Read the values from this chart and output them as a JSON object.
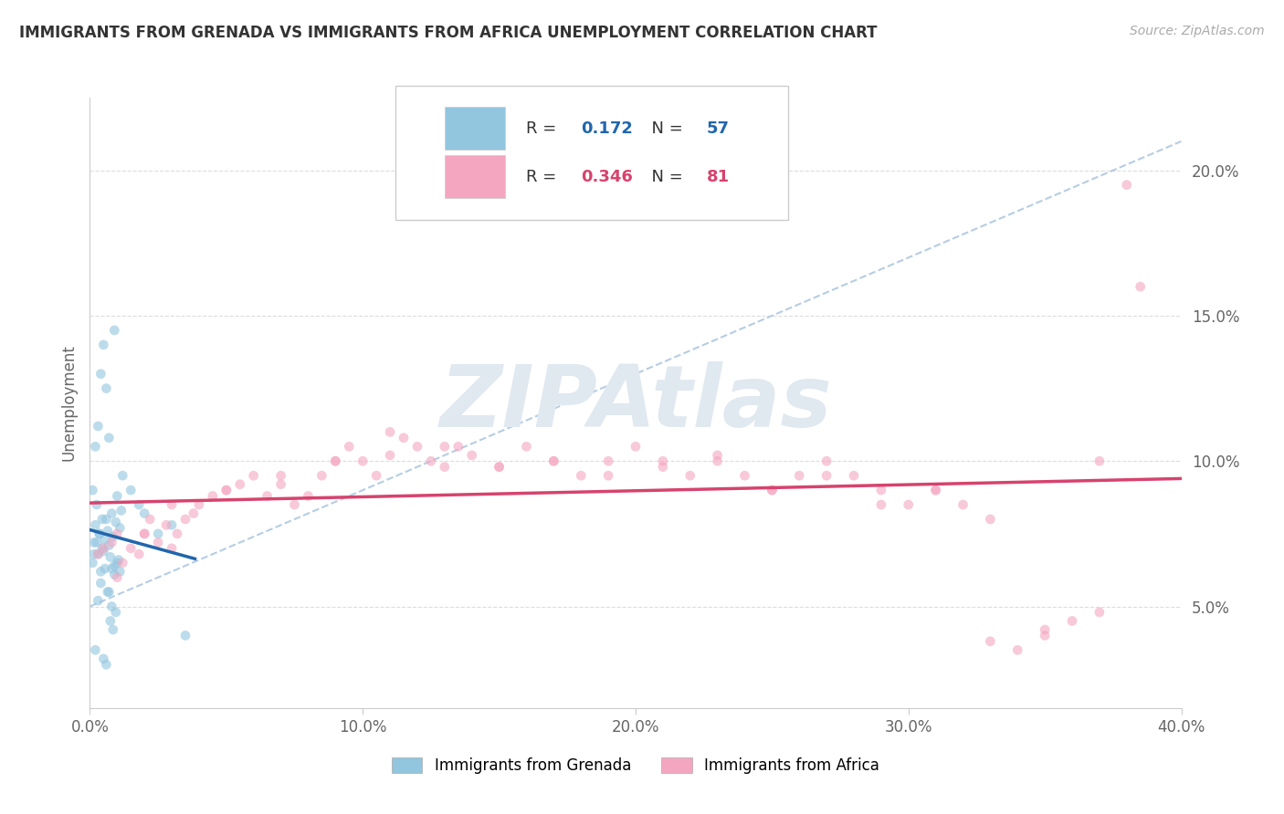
{
  "title": "IMMIGRANTS FROM GRENADA VS IMMIGRANTS FROM AFRICA UNEMPLOYMENT CORRELATION CHART",
  "source": "Source: ZipAtlas.com",
  "ylabel": "Unemployment",
  "x_tick_labels": [
    "0.0%",
    "10.0%",
    "20.0%",
    "30.0%",
    "40.0%"
  ],
  "x_tick_values": [
    0.0,
    10.0,
    20.0,
    30.0,
    40.0
  ],
  "y_tick_labels": [
    "5.0%",
    "10.0%",
    "15.0%",
    "20.0%"
  ],
  "y_tick_values": [
    5.0,
    10.0,
    15.0,
    20.0
  ],
  "xlim": [
    0.0,
    40.0
  ],
  "ylim": [
    1.5,
    22.5
  ],
  "grenada_R": 0.172,
  "grenada_N": 57,
  "africa_R": 0.346,
  "africa_N": 81,
  "grenada_color": "#92c5de",
  "africa_color": "#f4a6c0",
  "grenada_line_color": "#2166ac",
  "africa_line_color": "#d6436e",
  "dashed_line_color": "#aec8e0",
  "watermark": "ZIPAtlas",
  "bottom_legend_labels": [
    "Immigrants from Grenada",
    "Immigrants from Africa"
  ],
  "grenada_x": [
    0.1,
    0.15,
    0.2,
    0.25,
    0.3,
    0.35,
    0.4,
    0.45,
    0.5,
    0.55,
    0.6,
    0.65,
    0.7,
    0.75,
    0.8,
    0.85,
    0.9,
    0.95,
    1.0,
    1.05,
    1.1,
    1.15,
    1.2,
    0.1,
    0.2,
    0.3,
    0.4,
    0.5,
    0.6,
    0.7,
    0.8,
    0.9,
    1.0,
    1.1,
    0.15,
    0.25,
    0.35,
    0.45,
    0.55,
    0.65,
    0.75,
    0.85,
    0.95,
    1.5,
    1.8,
    2.0,
    2.5,
    3.0,
    3.5,
    0.2,
    0.3,
    0.4,
    0.5,
    0.6,
    0.7,
    0.8,
    0.9
  ],
  "grenada_y": [
    6.5,
    7.2,
    7.8,
    8.5,
    6.8,
    7.5,
    6.2,
    7.0,
    6.9,
    7.3,
    8.0,
    7.6,
    7.1,
    6.7,
    8.2,
    7.4,
    6.4,
    7.9,
    8.8,
    6.6,
    7.7,
    8.3,
    9.5,
    9.0,
    10.5,
    11.2,
    13.0,
    14.0,
    12.5,
    10.8,
    6.3,
    6.1,
    6.5,
    6.2,
    6.8,
    7.2,
    7.5,
    8.0,
    6.3,
    5.5,
    4.5,
    4.2,
    4.8,
    9.0,
    8.5,
    8.2,
    7.5,
    7.8,
    4.0,
    3.5,
    5.2,
    5.8,
    3.2,
    3.0,
    5.5,
    5.0,
    14.5
  ],
  "africa_x": [
    0.3,
    0.5,
    0.8,
    1.0,
    1.2,
    1.5,
    1.8,
    2.0,
    2.2,
    2.5,
    2.8,
    3.0,
    3.2,
    3.5,
    3.8,
    4.0,
    4.5,
    5.0,
    5.5,
    6.0,
    6.5,
    7.0,
    7.5,
    8.0,
    8.5,
    9.0,
    9.5,
    10.0,
    10.5,
    11.0,
    11.5,
    12.0,
    12.5,
    13.0,
    13.5,
    14.0,
    15.0,
    16.0,
    17.0,
    18.0,
    19.0,
    20.0,
    21.0,
    22.0,
    23.0,
    24.0,
    25.0,
    26.0,
    27.0,
    28.0,
    29.0,
    30.0,
    31.0,
    32.0,
    33.0,
    34.0,
    35.0,
    36.0,
    37.0,
    38.0,
    1.0,
    2.0,
    3.0,
    5.0,
    7.0,
    9.0,
    11.0,
    13.0,
    15.0,
    17.0,
    19.0,
    21.0,
    23.0,
    25.0,
    27.0,
    29.0,
    31.0,
    33.0,
    35.0,
    37.0,
    38.5
  ],
  "africa_y": [
    6.8,
    7.0,
    7.2,
    7.5,
    6.5,
    7.0,
    6.8,
    7.5,
    8.0,
    7.2,
    7.8,
    8.5,
    7.5,
    8.0,
    8.2,
    8.5,
    8.8,
    9.0,
    9.2,
    9.5,
    8.8,
    9.2,
    8.5,
    8.8,
    9.5,
    10.0,
    10.5,
    10.0,
    9.5,
    10.2,
    10.8,
    10.5,
    10.0,
    9.8,
    10.5,
    10.2,
    9.8,
    10.5,
    10.0,
    9.5,
    10.0,
    10.5,
    10.0,
    9.5,
    10.0,
    9.5,
    9.0,
    9.5,
    10.0,
    9.5,
    9.0,
    8.5,
    9.0,
    8.5,
    8.0,
    3.5,
    4.0,
    4.5,
    4.8,
    19.5,
    6.0,
    7.5,
    7.0,
    9.0,
    9.5,
    10.0,
    11.0,
    10.5,
    9.8,
    10.0,
    9.5,
    9.8,
    10.2,
    9.0,
    9.5,
    8.5,
    9.0,
    3.8,
    4.2,
    10.0,
    16.0
  ]
}
